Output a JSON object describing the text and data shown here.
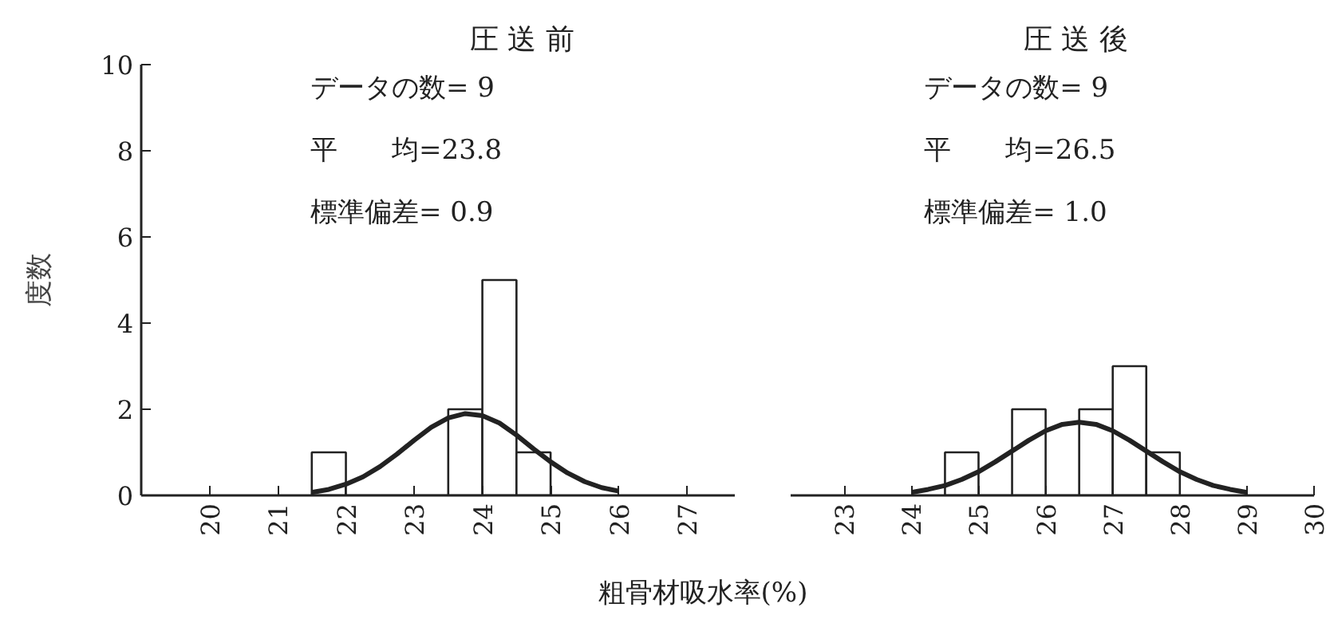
{
  "chart_data": [
    {
      "type": "histogram",
      "title": "圧 送 前",
      "ylabel": "度数",
      "xlabel": "粗骨材吸水率(%)",
      "bins": [
        21.5,
        22,
        22.5,
        23,
        23.5,
        24,
        24.5,
        25
      ],
      "values": [
        1,
        0,
        0,
        0,
        2,
        5,
        1
      ],
      "color": "#222222",
      "series": [
        {
          "type": "line",
          "color": "#222222",
          "x": [
            21.5,
            21.75,
            22,
            22.25,
            22.5,
            22.75,
            23,
            23.25,
            23.5,
            23.75,
            24,
            24.25,
            24.5,
            24.75,
            25,
            25.25,
            25.5,
            25.75,
            26
          ],
          "values": [
            0.07,
            0.14,
            0.26,
            0.43,
            0.67,
            0.96,
            1.28,
            1.58,
            1.8,
            1.9,
            1.85,
            1.68,
            1.4,
            1.08,
            0.78,
            0.52,
            0.32,
            0.18,
            0.1
          ]
        }
      ],
      "annotations": [
        "データの数= 9",
        "平　　均=23.8",
        "標準偏差= 0.9"
      ],
      "xlim": [
        19,
        27.7
      ],
      "xticks": [
        20,
        21,
        22,
        23,
        24,
        25,
        26,
        27
      ],
      "ylim": [
        0,
        10
      ],
      "yticks": [
        0,
        2,
        4,
        6,
        8,
        10
      ],
      "grid": false
    },
    {
      "type": "histogram",
      "title": "圧 送 後",
      "bins": [
        24.5,
        25,
        25.5,
        26,
        26.5,
        27,
        27.5,
        28
      ],
      "values": [
        1,
        0,
        2,
        0,
        2,
        3,
        1
      ],
      "color": "#222222",
      "series": [
        {
          "type": "line",
          "color": "#222222",
          "x": [
            24,
            24.25,
            24.5,
            24.75,
            25,
            25.25,
            25.5,
            25.75,
            26,
            26.25,
            26.5,
            26.75,
            27,
            27.25,
            27.5,
            27.75,
            28,
            28.25,
            28.5,
            28.75,
            29
          ],
          "values": [
            0.07,
            0.14,
            0.23,
            0.37,
            0.55,
            0.78,
            1.03,
            1.28,
            1.5,
            1.65,
            1.7,
            1.65,
            1.5,
            1.28,
            1.03,
            0.78,
            0.55,
            0.37,
            0.23,
            0.14,
            0.07
          ]
        }
      ],
      "annotations": [
        "データの数= 9",
        "平　　均=26.5",
        "標準偏差= 1.0"
      ],
      "xlim": [
        22.2,
        30
      ],
      "xticks": [
        23,
        24,
        25,
        26,
        27,
        28,
        29,
        30
      ],
      "ylim": [
        0,
        10
      ],
      "yticks": [
        0,
        2,
        4,
        6,
        8,
        10
      ],
      "tick_labels": "x",
      "grid": false
    }
  ]
}
